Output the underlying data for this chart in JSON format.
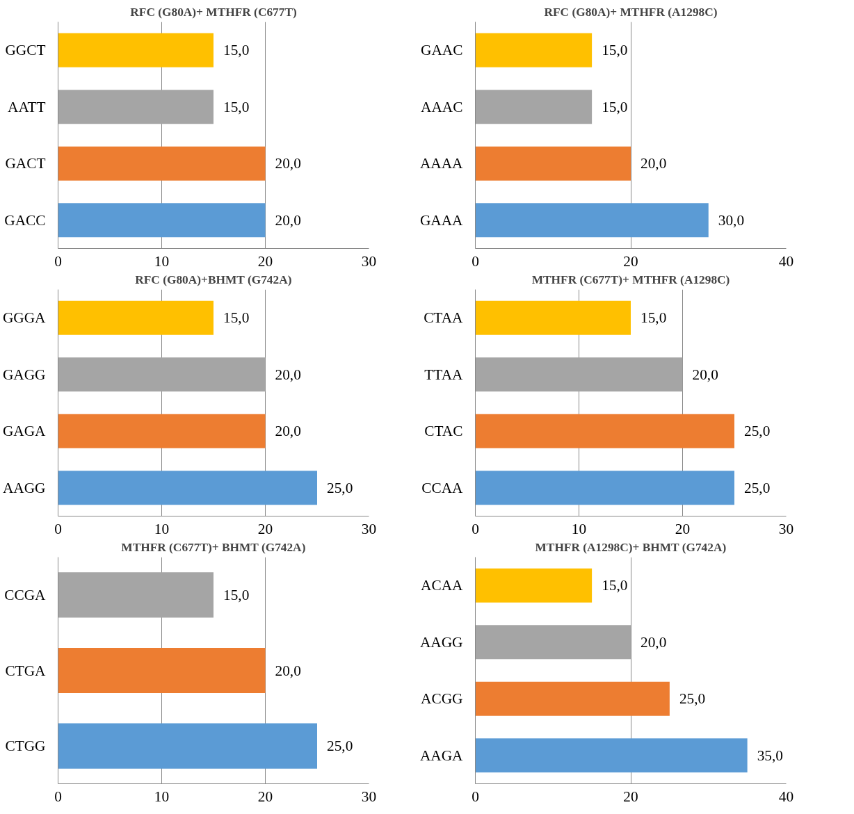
{
  "chart_data": [
    {
      "type": "bar",
      "orientation": "horizontal",
      "title": "RFC (G80A)+ MTHFR (C677T)",
      "categories": [
        "GGCT",
        "AATT",
        "GACT",
        "GACC"
      ],
      "values": [
        15,
        15,
        20,
        20
      ],
      "colors": [
        "#ffc000",
        "#a5a5a5",
        "#ed7d31",
        "#5b9bd5"
      ],
      "value_labels": [
        "15,0",
        "15,0",
        "20,0",
        "20,0"
      ],
      "xlim": [
        0,
        30
      ],
      "xticks": [
        0,
        10,
        20,
        30
      ],
      "grid": "x"
    },
    {
      "type": "bar",
      "orientation": "horizontal",
      "title": "RFC (G80A)+ MTHFR (A1298C)",
      "categories": [
        "GAAC",
        "AAAC",
        "AAAA",
        "GAAA"
      ],
      "values": [
        15,
        15,
        20,
        30
      ],
      "colors": [
        "#ffc000",
        "#a5a5a5",
        "#ed7d31",
        "#5b9bd5"
      ],
      "value_labels": [
        "15,0",
        "15,0",
        "20,0",
        "30,0"
      ],
      "xlim": [
        0,
        40
      ],
      "xticks": [
        0,
        20,
        40
      ],
      "grid": "x"
    },
    {
      "type": "bar",
      "orientation": "horizontal",
      "title": "RFC (G80A)+BHMT (G742A)",
      "categories": [
        "GGGA",
        "GAGG",
        "GAGA",
        "AAGG"
      ],
      "values": [
        15,
        20,
        20,
        25
      ],
      "colors": [
        "#ffc000",
        "#a5a5a5",
        "#ed7d31",
        "#5b9bd5"
      ],
      "value_labels": [
        "15,0",
        "20,0",
        "20,0",
        "25,0"
      ],
      "xlim": [
        0,
        30
      ],
      "xticks": [
        0,
        10,
        20,
        30
      ],
      "grid": "x"
    },
    {
      "type": "bar",
      "orientation": "horizontal",
      "title": "MTHFR (C677T)+ MTHFR (A1298C)",
      "categories": [
        "CTAA",
        "TTAA",
        "CTAC",
        "CCAA"
      ],
      "values": [
        15,
        20,
        25,
        25
      ],
      "colors": [
        "#ffc000",
        "#a5a5a5",
        "#ed7d31",
        "#5b9bd5"
      ],
      "value_labels": [
        "15,0",
        "20,0",
        "25,0",
        "25,0"
      ],
      "xlim": [
        0,
        30
      ],
      "xticks": [
        0,
        10,
        20,
        30
      ],
      "grid": "x"
    },
    {
      "type": "bar",
      "orientation": "horizontal",
      "title": "MTHFR (C677T)+ BHMT (G742A)",
      "categories": [
        "CCGA",
        "CTGA",
        "CTGG"
      ],
      "values": [
        15,
        20,
        25
      ],
      "colors": [
        "#a5a5a5",
        "#ed7d31",
        "#5b9bd5"
      ],
      "value_labels": [
        "15,0",
        "20,0",
        "25,0"
      ],
      "xlim": [
        0,
        30
      ],
      "xticks": [
        0,
        10,
        20,
        30
      ],
      "grid": "x"
    },
    {
      "type": "bar",
      "orientation": "horizontal",
      "title": "MTHFR (A1298C)+ BHMT (G742A)",
      "categories": [
        "ACAA",
        "AAGG",
        "ACGG",
        "AAGA"
      ],
      "values": [
        15,
        20,
        25,
        35
      ],
      "colors": [
        "#ffc000",
        "#a5a5a5",
        "#ed7d31",
        "#5b9bd5"
      ],
      "value_labels": [
        "15,0",
        "20,0",
        "25,0",
        "35,0"
      ],
      "xlim": [
        0,
        40
      ],
      "xticks": [
        0,
        20,
        40
      ],
      "grid": "x"
    }
  ]
}
